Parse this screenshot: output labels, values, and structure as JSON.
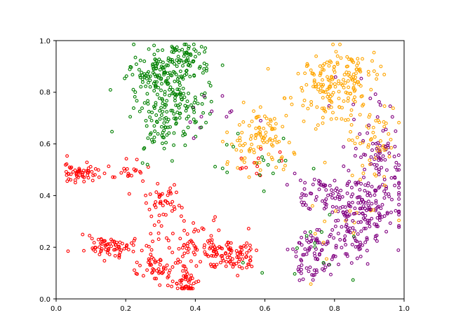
{
  "chart_data": {
    "type": "scatter",
    "title": "",
    "xlabel": "",
    "ylabel": "",
    "xlim": [
      0.0,
      1.0
    ],
    "ylim": [
      0.0,
      1.0
    ],
    "xticks": [
      "0.0",
      "0.2",
      "0.4",
      "0.6",
      "0.8",
      "1.0"
    ],
    "yticks": [
      "0.0",
      "0.2",
      "0.4",
      "0.6",
      "0.8",
      "1.0"
    ],
    "grid": false,
    "legend": "none",
    "marker": "hollow-circle",
    "series": [
      {
        "color": "#008000",
        "clusters": [
          {
            "cx": 0.3,
            "cy": 0.88,
            "sx": 0.05,
            "sy": 0.05,
            "n": 140
          },
          {
            "cx": 0.33,
            "cy": 0.74,
            "sx": 0.05,
            "sy": 0.06,
            "n": 120
          },
          {
            "cx": 0.38,
            "cy": 0.92,
            "sx": 0.03,
            "sy": 0.04,
            "n": 50
          },
          {
            "cx": 0.28,
            "cy": 0.64,
            "sx": 0.03,
            "sy": 0.04,
            "n": 30
          },
          {
            "cx": 0.55,
            "cy": 0.55,
            "sx": 0.08,
            "sy": 0.06,
            "n": 18
          },
          {
            "cx": 0.75,
            "cy": 0.18,
            "sx": 0.1,
            "sy": 0.08,
            "n": 14
          }
        ]
      },
      {
        "color": "#FFA500",
        "clusters": [
          {
            "cx": 0.78,
            "cy": 0.82,
            "sx": 0.06,
            "sy": 0.07,
            "n": 150
          },
          {
            "cx": 0.86,
            "cy": 0.88,
            "sx": 0.03,
            "sy": 0.04,
            "n": 35
          },
          {
            "cx": 0.6,
            "cy": 0.64,
            "sx": 0.04,
            "sy": 0.05,
            "n": 70
          },
          {
            "cx": 0.54,
            "cy": 0.58,
            "sx": 0.04,
            "sy": 0.04,
            "n": 25
          },
          {
            "cx": 0.91,
            "cy": 0.6,
            "sx": 0.04,
            "sy": 0.08,
            "n": 55
          },
          {
            "cx": 0.82,
            "cy": 0.3,
            "sx": 0.08,
            "sy": 0.1,
            "n": 15
          }
        ]
      },
      {
        "color": "#FF0000",
        "clusters": [
          {
            "cx": 0.07,
            "cy": 0.49,
            "sx": 0.025,
            "sy": 0.018,
            "n": 55
          },
          {
            "cx": 0.2,
            "cy": 0.49,
            "sx": 0.03,
            "sy": 0.02,
            "n": 22
          },
          {
            "cx": 0.16,
            "cy": 0.2,
            "sx": 0.04,
            "sy": 0.02,
            "n": 70
          },
          {
            "cx": 0.31,
            "cy": 0.37,
            "sx": 0.03,
            "sy": 0.04,
            "n": 45
          },
          {
            "cx": 0.29,
            "cy": 0.12,
            "sx": 0.04,
            "sy": 0.03,
            "n": 50
          },
          {
            "cx": 0.38,
            "cy": 0.06,
            "sx": 0.025,
            "sy": 0.025,
            "n": 40
          },
          {
            "cx": 0.38,
            "cy": 0.22,
            "sx": 0.04,
            "sy": 0.05,
            "n": 60
          },
          {
            "cx": 0.5,
            "cy": 0.17,
            "sx": 0.04,
            "sy": 0.03,
            "n": 100
          },
          {
            "cx": 0.57,
            "cy": 0.53,
            "sx": 0.05,
            "sy": 0.03,
            "n": 12
          }
        ]
      },
      {
        "color": "#800080",
        "clusters": [
          {
            "cx": 0.9,
            "cy": 0.36,
            "sx": 0.05,
            "sy": 0.08,
            "n": 170
          },
          {
            "cx": 0.85,
            "cy": 0.23,
            "sx": 0.04,
            "sy": 0.05,
            "n": 50
          },
          {
            "cx": 0.77,
            "cy": 0.4,
            "sx": 0.04,
            "sy": 0.04,
            "n": 60
          },
          {
            "cx": 0.74,
            "cy": 0.18,
            "sx": 0.04,
            "sy": 0.05,
            "n": 60
          },
          {
            "cx": 0.93,
            "cy": 0.58,
            "sx": 0.03,
            "sy": 0.05,
            "n": 40
          },
          {
            "cx": 0.74,
            "cy": 0.1,
            "sx": 0.02,
            "sy": 0.01,
            "n": 15
          },
          {
            "cx": 0.88,
            "cy": 0.72,
            "sx": 0.05,
            "sy": 0.08,
            "n": 18
          },
          {
            "cx": 0.45,
            "cy": 0.72,
            "sx": 0.06,
            "sy": 0.08,
            "n": 12
          }
        ]
      }
    ]
  }
}
